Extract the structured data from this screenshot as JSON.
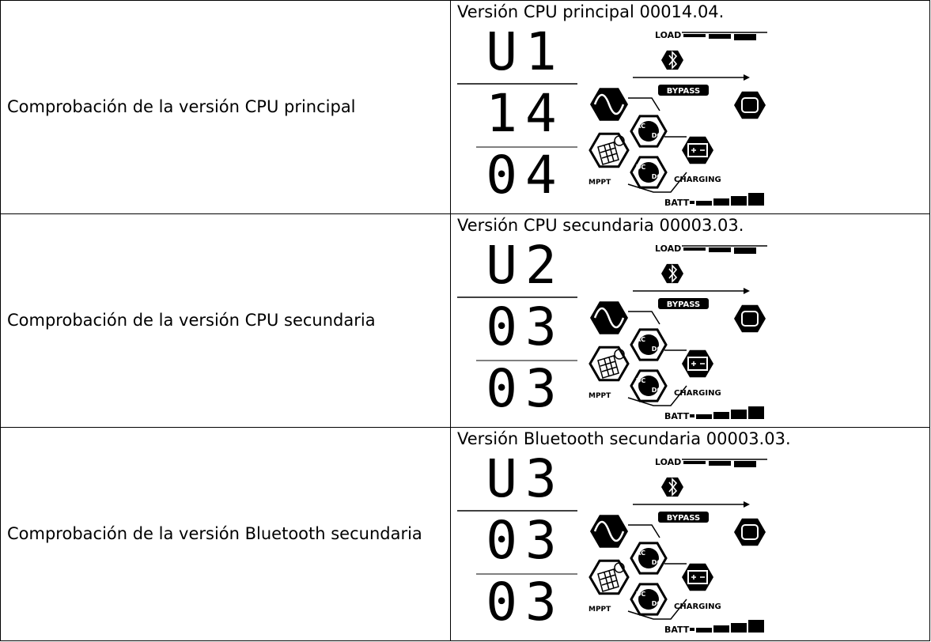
{
  "table": {
    "rows": [
      {
        "description": "Comprobación de la versión CPU principal",
        "caption": "Versión CPU principal 00014.04.",
        "display": [
          "U1",
          "14",
          "04"
        ]
      },
      {
        "description": "Comprobación de la versión CPU secundaria",
        "caption": "Versión CPU secundaria 00003.03.",
        "display": [
          "U2",
          "03",
          "03"
        ]
      },
      {
        "description": "Comprobación de la versión Bluetooth secundaria",
        "caption": "Versión Bluetooth secundaria 00003.03.",
        "display": [
          "U3",
          "03",
          "03"
        ]
      }
    ]
  },
  "display_labels": {
    "load": "LOAD",
    "bypass": "BYPASS",
    "ac": "AC",
    "dc": "DC",
    "mppt": "MPPT",
    "charging": "CHARGING",
    "batt": "BATT"
  }
}
